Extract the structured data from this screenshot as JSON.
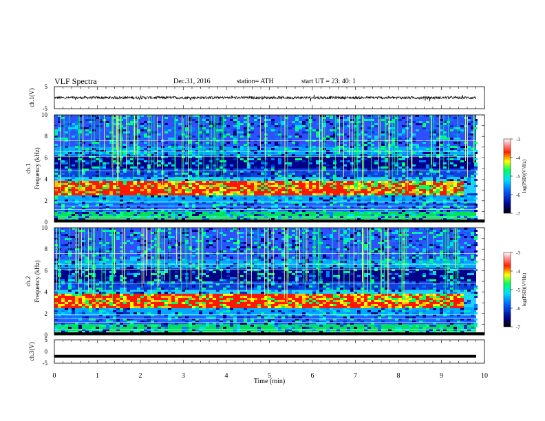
{
  "header": {
    "title": "VLF  Spectra",
    "date": "Dec.31, 2016",
    "station": "station= ATH",
    "start_ut": "start  UT  =    23: 40: 1"
  },
  "chart_data": [
    {
      "type": "line",
      "panel": "ch1-waveform",
      "ylabel": "ch.1(V)",
      "yticks": [
        "5",
        "-5"
      ],
      "ylim": [
        -5,
        5
      ],
      "xlim": [
        0,
        10
      ],
      "description_values": {
        "baseline": 0,
        "noise_amplitude": 0.6
      }
    },
    {
      "type": "heatmap",
      "panel": "ch1-spectrogram",
      "ylabel": "ch.1\nFrequency (kHz)",
      "ylabel_line1": "ch.1",
      "ylabel_line2": "Frequency  (kHz)",
      "yticks": [
        "10",
        "8",
        "6",
        "4",
        "2",
        "0"
      ],
      "ylim": [
        0,
        10
      ],
      "xlim": [
        0,
        10
      ],
      "colorbar": {
        "label": "log(PSD)(V²/Hz)",
        "ticks": [
          "-3",
          "-4",
          "-5",
          "-6",
          "-7"
        ],
        "range": [
          -7,
          -3
        ]
      },
      "features": {
        "intense_band_khz": [
          2.5,
          4.0
        ],
        "band_end_min": 9.5
      }
    },
    {
      "type": "heatmap",
      "panel": "ch2-spectrogram",
      "ylabel_line1": "ch.2",
      "ylabel_line2": "Frequency  (kHz)",
      "yticks": [
        "10",
        "8",
        "6",
        "4",
        "2",
        "0"
      ],
      "ylim": [
        0,
        10
      ],
      "xlim": [
        0,
        10
      ],
      "colorbar": {
        "label": "log(PSD)(V²/Hz)",
        "ticks": [
          "-3",
          "-4",
          "-5",
          "-6",
          "-7"
        ],
        "range": [
          -7,
          -3
        ]
      },
      "features": {
        "intense_band_khz": [
          2.5,
          4.0
        ],
        "band_end_min": 9.5
      }
    },
    {
      "type": "line",
      "panel": "ch3-waveform",
      "ylabel": "ch.3(V)",
      "yticks": [
        "5",
        "0",
        "-5"
      ],
      "ylim": [
        -5,
        5
      ],
      "xlim": [
        0,
        10
      ],
      "description_values": {
        "baseline": -2
      }
    }
  ],
  "xaxis": {
    "label": "Time  (min)",
    "ticks": [
      "0",
      "1",
      "2",
      "3",
      "4",
      "5",
      "6",
      "7",
      "8",
      "9",
      "10"
    ]
  },
  "colors": {
    "low": "#000080",
    "mid": "#00c0ff",
    "green": "#00ff40",
    "yellow": "#ffff00",
    "red": "#ff2000",
    "top": "#ffffff"
  }
}
